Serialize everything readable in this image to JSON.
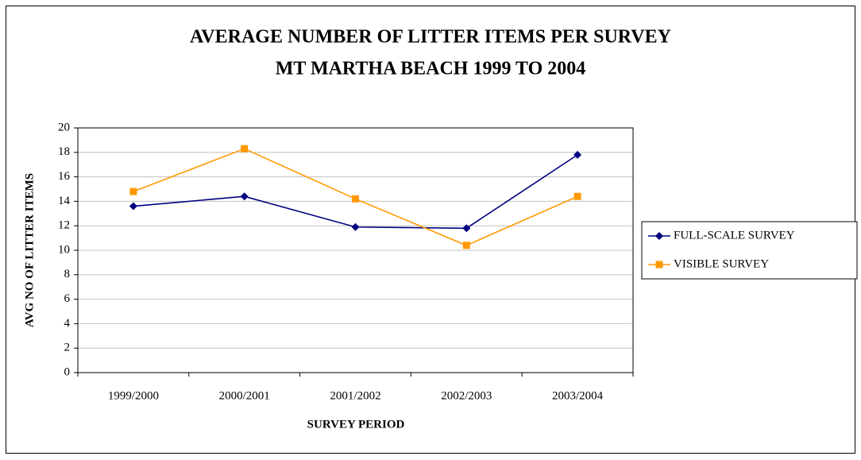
{
  "chart_data": {
    "type": "line",
    "title": [
      "AVERAGE NUMBER OF LITTER ITEMS PER SURVEY",
      "MT MARTHA BEACH 1999 TO 2004"
    ],
    "x_label": "SURVEY PERIOD",
    "y_label": "AVG NO OF LITTER ITEMS",
    "categories": [
      "1999/2000",
      "2000/2001",
      "2001/2002",
      "2002/2003",
      "2003/2004"
    ],
    "series": [
      {
        "name": "FULL-SCALE SURVEY",
        "color": "#000080",
        "marker": "diamond",
        "values": [
          13.6,
          14.4,
          11.9,
          11.8,
          17.8
        ]
      },
      {
        "name": "VISIBLE SURVEY",
        "color": "#FF9900",
        "marker": "square",
        "values": [
          14.8,
          18.3,
          14.2,
          10.4,
          14.4
        ]
      }
    ],
    "ylim": [
      0,
      20
    ],
    "yticks": [
      0,
      2,
      4,
      6,
      8,
      10,
      12,
      14,
      16,
      18,
      20
    ],
    "grid": true,
    "legend": "right"
  }
}
